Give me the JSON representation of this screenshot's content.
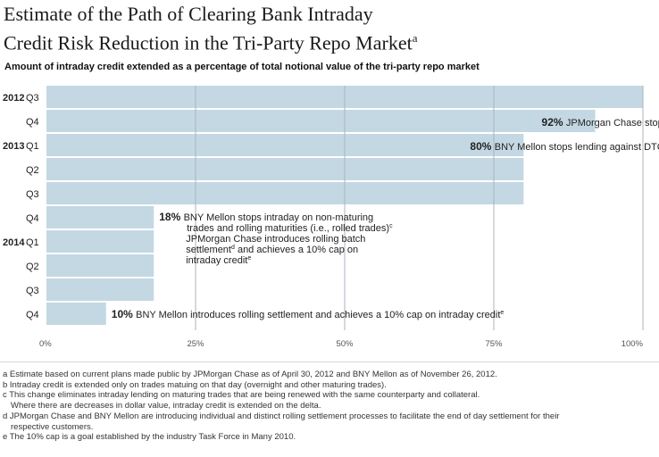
{
  "header": {
    "title_line1": "Estimate of the Path of Clearing Bank Intraday",
    "title_line2": "Credit Risk Reduction in the Tri-Party Repo Market",
    "title_note": "a",
    "subtitle": "Amount of intraday credit extended as a percentage of total notional value of the tri-party repo market"
  },
  "colors": {
    "bar": "#c4d8e4",
    "grid": "#a9b5bd",
    "text": "#222222"
  },
  "chart_data": {
    "type": "bar",
    "orientation": "horizontal",
    "title": "Estimate of the Path of Clearing Bank Intraday Credit Risk Reduction in the Tri-Party Repo Market",
    "subtitle": "Amount of intraday credit extended as a percentage of total notional value of the tri-party repo market",
    "unit": "%",
    "xlim": [
      0,
      100
    ],
    "x_ticks": [
      0,
      25,
      50,
      75,
      100
    ],
    "x_tick_labels": [
      "0%",
      "25%",
      "50%",
      "75%",
      "100%"
    ],
    "grid": true,
    "legend": "none",
    "categories": [
      {
        "year": "2012",
        "quarter": "Q3",
        "value": 100
      },
      {
        "year": "",
        "quarter": "Q4",
        "value": 92
      },
      {
        "year": "2013",
        "quarter": "Q1",
        "value": 80
      },
      {
        "year": "",
        "quarter": "Q2",
        "value": 80
      },
      {
        "year": "",
        "quarter": "Q3",
        "value": 80
      },
      {
        "year": "",
        "quarter": "Q4",
        "value": 18
      },
      {
        "year": "2014",
        "quarter": "Q1",
        "value": 18
      },
      {
        "year": "",
        "quarter": "Q2",
        "value": 18
      },
      {
        "year": "",
        "quarter": "Q3",
        "value": 18
      },
      {
        "year": "",
        "quarter": "Q4",
        "value": 10
      }
    ],
    "annotations": [
      {
        "row": 1,
        "pct": "92%",
        "lines": [
          {
            "text": "JPMorgan Chase stops intraday lending on non-maturing trades",
            "sup": "b"
          }
        ]
      },
      {
        "row": 2,
        "pct": "80%",
        "lines": [
          {
            "text": "BNY Mellon stops lending against DTC sourced collateral",
            "sup": ""
          }
        ]
      },
      {
        "row": 5,
        "pct": "18%",
        "lines": [
          {
            "text": "BNY Mellon stops intraday on non-maturing",
            "sup": ""
          },
          {
            "text": "trades and rolling maturities (i.e., rolled trades)",
            "sup": "c"
          }
        ]
      },
      {
        "row": 6,
        "pct": "",
        "lines": [
          {
            "text": "JPMorgan Chase introduces rolling batch",
            "sup": ""
          },
          {
            "text": "settlement",
            "sup": "d",
            "after": " and achieves a 10% cap on"
          },
          {
            "text": "intraday credit",
            "sup": "e"
          }
        ]
      },
      {
        "row": 9,
        "pct": "10%",
        "lines": [
          {
            "text": "BNY Mellon introduces rolling settlement and achieves a 10% cap on intraday credit",
            "sup": "e"
          }
        ]
      }
    ]
  },
  "footnotes": [
    {
      "text": "a Estimate based on current plans made public by JPMorgan Chase as of April 30, 2012 and BNY Mellon as of November 26, 2012.",
      "cont": ""
    },
    {
      "text": "b Intraday credit is extended only on trades matuing on that day (overnight and other maturing trades).",
      "cont": ""
    },
    {
      "text": "c This change eliminates intraday lending on maturing trades that are being renewed with the same counterparty and collateral.",
      "cont": "Where there are decreases in dollar value, intraday credit is extended on the delta."
    },
    {
      "text": "d JPMorgan Chase and BNY Mellon are introducing individual and distinct rolling settlement processes to facilitate the end of day settlement for their",
      "cont": "respective customers."
    },
    {
      "text": "e The 10% cap is a goal established by the industry Task Force in Many 2010.",
      "cont": ""
    }
  ]
}
